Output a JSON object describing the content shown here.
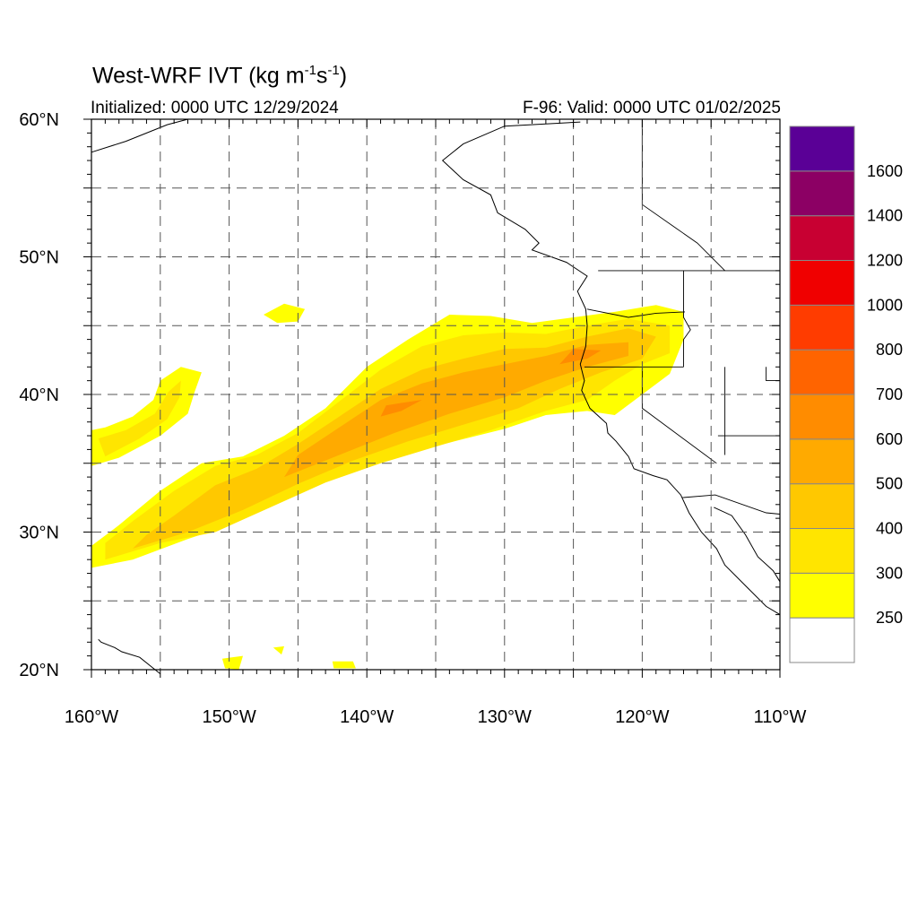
{
  "title": {
    "main": "West-WRF IVT (kg m",
    "exp1": "-1",
    "mid": "s",
    "exp2": "-1",
    "close": ")"
  },
  "initialized": "Initialized: 0000 UTC 12/29/2024",
  "valid": "F-96: Valid: 0000 UTC 01/02/2025",
  "map": {
    "lon_range": [
      -160,
      -110
    ],
    "lat_range": [
      20,
      60
    ],
    "lon_ticks": [
      {
        "value": -160,
        "label": "160°W"
      },
      {
        "value": -150,
        "label": "150°W"
      },
      {
        "value": -140,
        "label": "140°W"
      },
      {
        "value": -130,
        "label": "130°W"
      },
      {
        "value": -120,
        "label": "120°W"
      },
      {
        "value": -110,
        "label": "110°W"
      }
    ],
    "lat_ticks": [
      {
        "value": 20,
        "label": "20°N"
      },
      {
        "value": 30,
        "label": "30°N"
      },
      {
        "value": 40,
        "label": "40°N"
      },
      {
        "value": 50,
        "label": "50°N"
      },
      {
        "value": 60,
        "label": "60°N"
      }
    ],
    "grid_lon": [
      -155,
      -150,
      -145,
      -140,
      -135,
      -130,
      -125,
      -120,
      -115
    ],
    "grid_lat": [
      25,
      30,
      35,
      40,
      45,
      50,
      55
    ],
    "gridlines": true
  },
  "colorbar": {
    "levels": [
      {
        "label": "250",
        "color": "#ffff00"
      },
      {
        "label": "300",
        "color": "#ffe500"
      },
      {
        "label": "400",
        "color": "#ffc800"
      },
      {
        "label": "500",
        "color": "#ffaa00"
      },
      {
        "label": "600",
        "color": "#ff8c00"
      },
      {
        "label": "700",
        "color": "#ff6400"
      },
      {
        "label": "800",
        "color": "#ff3c00"
      },
      {
        "label": "1000",
        "color": "#f00000"
      },
      {
        "label": "1200",
        "color": "#c80032"
      },
      {
        "label": "1400",
        "color": "#8c0064"
      },
      {
        "label": "1600",
        "color": "#5a0096"
      }
    ],
    "below_color": "#ffffff"
  },
  "ivt_bands": [
    {
      "name": "ar-main",
      "color": "#ffff00",
      "points": [
        [
          -160,
          27.4
        ],
        [
          -157,
          28
        ],
        [
          -153,
          29.5
        ],
        [
          -150,
          30.5
        ],
        [
          -146,
          32.5
        ],
        [
          -142,
          34
        ],
        [
          -138,
          35.5
        ],
        [
          -134,
          36.5
        ],
        [
          -130,
          37.5
        ],
        [
          -127,
          38.5
        ],
        [
          -124,
          38.8
        ],
        [
          -122,
          38.5
        ],
        [
          -120,
          40
        ],
        [
          -118,
          41.5
        ],
        [
          -117,
          44
        ],
        [
          -117,
          46
        ],
        [
          -119,
          46.5
        ],
        [
          -122,
          46
        ],
        [
          -125,
          45.6
        ],
        [
          -128,
          45.2
        ],
        [
          -131,
          45.7
        ],
        [
          -134,
          45.8
        ],
        [
          -137,
          44
        ],
        [
          -140,
          42
        ],
        [
          -143,
          39
        ],
        [
          -146,
          37
        ],
        [
          -149,
          35.5
        ],
        [
          -152,
          35
        ],
        [
          -155,
          33
        ],
        [
          -158,
          30.5
        ],
        [
          -160,
          29
        ]
      ]
    },
    {
      "name": "ar-300",
      "color": "#ffe500",
      "points": [
        [
          -159,
          28
        ],
        [
          -155,
          29.2
        ],
        [
          -151,
          30
        ],
        [
          -147,
          31.8
        ],
        [
          -143,
          33.6
        ],
        [
          -139,
          35
        ],
        [
          -135,
          36.2
        ],
        [
          -131,
          37.4
        ],
        [
          -127,
          38.8
        ],
        [
          -124,
          39.6
        ],
        [
          -122,
          41
        ],
        [
          -120,
          42.2
        ],
        [
          -118,
          43
        ],
        [
          -118,
          45
        ],
        [
          -121,
          45.5
        ],
        [
          -124,
          45
        ],
        [
          -127,
          44.4
        ],
        [
          -130,
          44.5
        ],
        [
          -133,
          44.3
        ],
        [
          -136,
          43.5
        ],
        [
          -139,
          41.8
        ],
        [
          -142,
          39.5
        ],
        [
          -145,
          37.2
        ],
        [
          -148,
          35.6
        ],
        [
          -151,
          34.8
        ],
        [
          -154,
          33
        ],
        [
          -157,
          30.8
        ],
        [
          -159,
          29.2
        ]
      ]
    },
    {
      "name": "ar-400",
      "color": "#ffc800",
      "points": [
        [
          -157,
          28.8
        ],
        [
          -153,
          30
        ],
        [
          -149,
          31.6
        ],
        [
          -145,
          33.5
        ],
        [
          -141,
          35.2
        ],
        [
          -137,
          36.6
        ],
        [
          -133,
          37.8
        ],
        [
          -129,
          39
        ],
        [
          -126,
          40.4
        ],
        [
          -123,
          41.6
        ],
        [
          -120,
          42.6
        ],
        [
          -119,
          44.2
        ],
        [
          -121,
          44.8
        ],
        [
          -124,
          44.2
        ],
        [
          -127,
          43.4
        ],
        [
          -130,
          43.3
        ],
        [
          -133,
          42.6
        ],
        [
          -136,
          41.8
        ],
        [
          -139,
          40.4
        ],
        [
          -142,
          38.4
        ],
        [
          -145,
          36.4
        ],
        [
          -148,
          34.6
        ],
        [
          -151,
          33.4
        ],
        [
          -154,
          31.2
        ],
        [
          -156,
          29.8
        ]
      ]
    },
    {
      "name": "ar-500",
      "color": "#ffaa00",
      "points": [
        [
          -146,
          34
        ],
        [
          -142,
          35.6
        ],
        [
          -138,
          37.2
        ],
        [
          -134,
          38.6
        ],
        [
          -130,
          39.8
        ],
        [
          -127,
          41
        ],
        [
          -124,
          42
        ],
        [
          -121,
          42.8
        ],
        [
          -121,
          43.8
        ],
        [
          -124,
          43.6
        ],
        [
          -127,
          42.8
        ],
        [
          -130,
          42.2
        ],
        [
          -133,
          41.6
        ],
        [
          -136,
          40.8
        ],
        [
          -139,
          39.6
        ],
        [
          -142,
          37.6
        ],
        [
          -145,
          35.6
        ]
      ]
    },
    {
      "name": "ar-600",
      "color": "#ff8c00",
      "points": [
        [
          -139,
          38.4
        ],
        [
          -137.5,
          38.8
        ],
        [
          -136,
          39.6
        ],
        [
          -137.4,
          39.4
        ],
        [
          -138.6,
          39.2
        ]
      ]
    },
    {
      "name": "ar-600b",
      "color": "#ff8c00",
      "points": [
        [
          -126,
          42.2
        ],
        [
          -124,
          42.6
        ],
        [
          -123,
          43.2
        ],
        [
          -125,
          43.3
        ]
      ]
    },
    {
      "name": "hook",
      "color": "#ffff00",
      "points": [
        [
          -160,
          34.8
        ],
        [
          -158,
          35.4
        ],
        [
          -155,
          37
        ],
        [
          -153,
          38.6
        ],
        [
          -152.5,
          40.2
        ],
        [
          -152,
          41.6
        ],
        [
          -153.5,
          42
        ],
        [
          -155,
          41
        ],
        [
          -155.5,
          39.6
        ],
        [
          -157,
          38.4
        ],
        [
          -159,
          37.6
        ],
        [
          -160,
          37.4
        ]
      ]
    },
    {
      "name": "hook-300",
      "color": "#ffe500",
      "points": [
        [
          -159,
          35.5
        ],
        [
          -156.5,
          36.8
        ],
        [
          -154.5,
          38.2
        ],
        [
          -153.6,
          39.8
        ],
        [
          -153.5,
          41
        ],
        [
          -154.4,
          40.2
        ],
        [
          -155.4,
          38.6
        ],
        [
          -157.5,
          37.4
        ],
        [
          -159.5,
          36.8
        ]
      ]
    },
    {
      "name": "blob-n",
      "color": "#ffff00",
      "points": [
        [
          -147.5,
          45.8
        ],
        [
          -146,
          46.6
        ],
        [
          -144.5,
          46.2
        ],
        [
          -145,
          45.3
        ],
        [
          -146.5,
          45.2
        ]
      ]
    },
    {
      "name": "blob-s1",
      "color": "#ffff00",
      "points": [
        [
          -150.5,
          20.8
        ],
        [
          -149,
          21
        ],
        [
          -149.3,
          20
        ],
        [
          -150.3,
          20.1
        ]
      ]
    },
    {
      "name": "blob-s2",
      "color": "#ffff00",
      "points": [
        [
          -142.5,
          20.6
        ],
        [
          -141,
          20.6
        ],
        [
          -140.8,
          20.1
        ],
        [
          -142.4,
          20.1
        ]
      ]
    },
    {
      "name": "blob-s3",
      "color": "#ffff00",
      "points": [
        [
          -146.8,
          21.6
        ],
        [
          -146,
          21.7
        ],
        [
          -146.2,
          21.1
        ]
      ]
    }
  ],
  "coastlines": [
    {
      "name": "north-american-coast",
      "points": [
        [
          -124.5,
          59.8
        ],
        [
          -130,
          59.5
        ],
        [
          -133,
          58.2
        ],
        [
          -134.5,
          57
        ],
        [
          -133,
          55.6
        ],
        [
          -131,
          54.5
        ],
        [
          -130.5,
          53.2
        ],
        [
          -128.5,
          52
        ],
        [
          -127.5,
          51
        ],
        [
          -128,
          50.5
        ],
        [
          -125.5,
          49.6
        ],
        [
          -124,
          48.6
        ],
        [
          -124.7,
          47.5
        ],
        [
          -124.1,
          46.2
        ],
        [
          -124,
          45
        ],
        [
          -124.1,
          43.5
        ],
        [
          -124.5,
          42.2
        ],
        [
          -124.2,
          41
        ],
        [
          -124.4,
          40.3
        ],
        [
          -123.8,
          39
        ],
        [
          -122.6,
          37.9
        ],
        [
          -122.5,
          37.2
        ],
        [
          -121.9,
          36.6
        ],
        [
          -121,
          35.5
        ],
        [
          -120.6,
          34.6
        ],
        [
          -119.2,
          34.1
        ],
        [
          -118.2,
          33.8
        ],
        [
          -117.2,
          32.7
        ],
        [
          -116.6,
          31.4
        ],
        [
          -115.7,
          30
        ],
        [
          -114.6,
          28.8
        ],
        [
          -114,
          27.6
        ],
        [
          -112.4,
          26
        ],
        [
          -111,
          24.6
        ],
        [
          -110,
          24
        ]
      ]
    },
    {
      "name": "gulf-of-california",
      "points": [
        [
          -114.8,
          31.8
        ],
        [
          -113.5,
          31.2
        ],
        [
          -112.5,
          29.8
        ],
        [
          -111.6,
          28.2
        ],
        [
          -110.5,
          27.2
        ],
        [
          -110,
          26.4
        ]
      ]
    },
    {
      "name": "alaska-coast",
      "points": [
        [
          -160,
          57.6
        ],
        [
          -157.5,
          58.4
        ],
        [
          -154.5,
          59.6
        ],
        [
          -153,
          60
        ]
      ]
    },
    {
      "name": "hawaii",
      "points": [
        [
          -159.5,
          22.2
        ],
        [
          -159.3,
          22.0
        ],
        [
          -158.3,
          21.6
        ],
        [
          -157.8,
          21.3
        ],
        [
          -156.5,
          20.9
        ],
        [
          -155.5,
          20.1
        ],
        [
          -155,
          19.7
        ]
      ]
    }
  ],
  "borders": [
    {
      "name": "us-canada-border",
      "points": [
        [
          -123.2,
          49
        ],
        [
          -110,
          49
        ]
      ]
    },
    {
      "name": "wa-or-border",
      "points": [
        [
          -124,
          46.2
        ],
        [
          -121,
          45.6
        ],
        [
          -119,
          45.9
        ],
        [
          -116.9,
          46
        ]
      ]
    },
    {
      "name": "or-ca-border",
      "points": [
        [
          -124.2,
          42
        ],
        [
          -117,
          42
        ]
      ]
    },
    {
      "name": "ca-nv-border",
      "points": [
        [
          -120,
          42
        ],
        [
          -120,
          39
        ],
        [
          -114.6,
          35
        ]
      ]
    },
    {
      "name": "id-border",
      "points": [
        [
          -117,
          49
        ],
        [
          -117,
          45.6
        ],
        [
          -116.5,
          44.7
        ],
        [
          -117,
          44
        ],
        [
          -117,
          42
        ]
      ]
    },
    {
      "name": "nv-ut-border",
      "points": [
        [
          -114,
          42
        ],
        [
          -114,
          35.6
        ]
      ]
    },
    {
      "name": "ut-border",
      "points": [
        [
          -111,
          42
        ],
        [
          -111,
          41
        ],
        [
          -110,
          41
        ]
      ]
    },
    {
      "name": "az-border",
      "points": [
        [
          -114.5,
          37
        ],
        [
          -110,
          37
        ]
      ]
    },
    {
      "name": "us-mexico-border",
      "points": [
        [
          -117.1,
          32.5
        ],
        [
          -114.7,
          32.7
        ],
        [
          -111,
          31.4
        ],
        [
          -110,
          31.3
        ]
      ]
    },
    {
      "name": "bc-ab-border",
      "points": [
        [
          -120,
          60
        ],
        [
          -120,
          53.8
        ],
        [
          -116,
          51
        ],
        [
          -114,
          49
        ]
      ]
    }
  ]
}
